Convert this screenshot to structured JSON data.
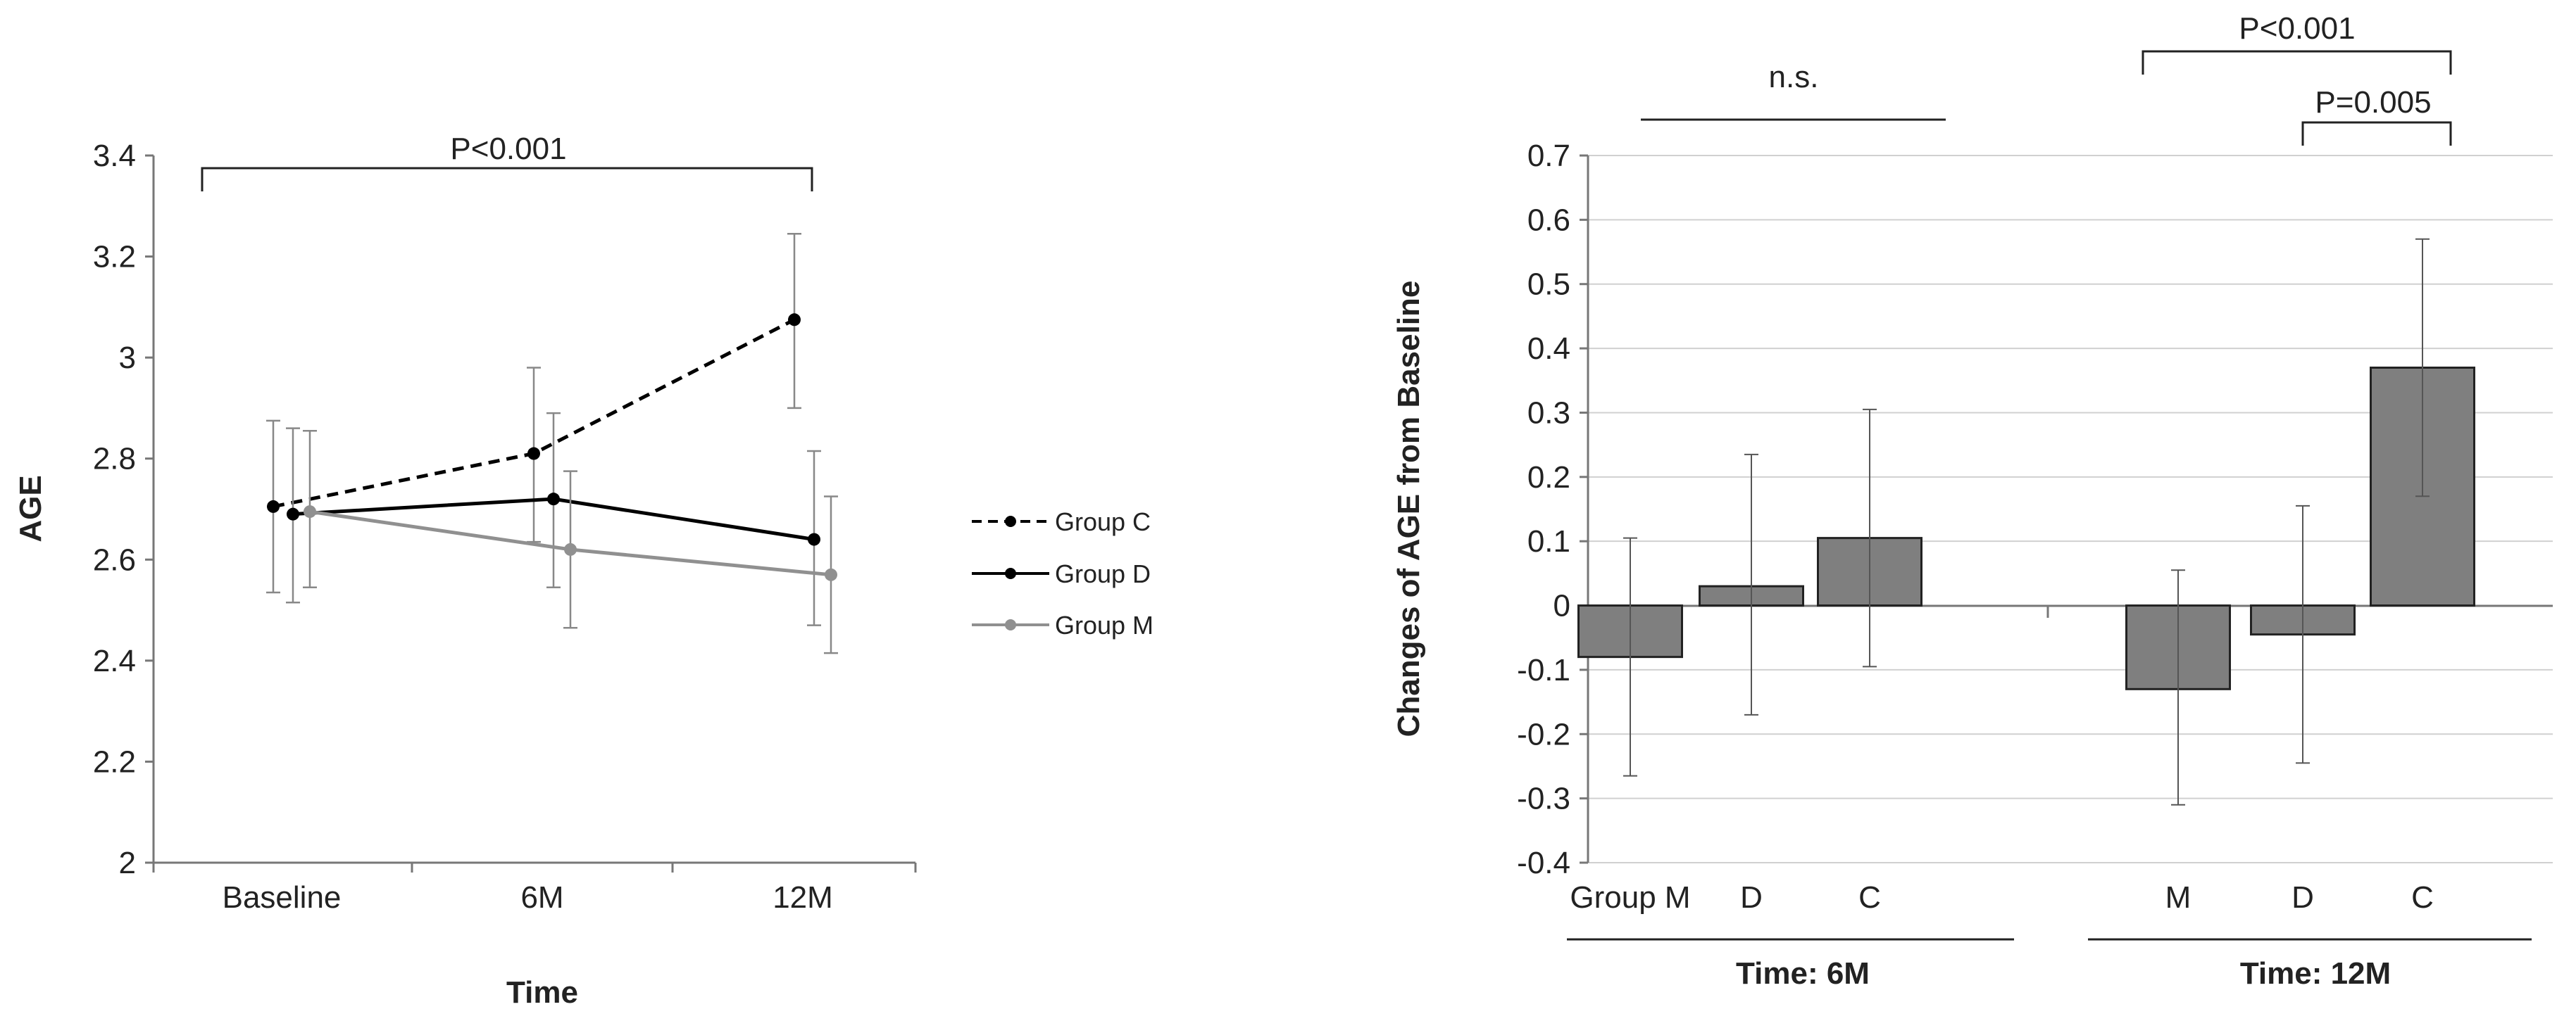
{
  "chart_data": [
    {
      "type": "line",
      "xlabel": "Time",
      "ylabel": "AGE",
      "categories": [
        "Baseline",
        "6M",
        "12M"
      ],
      "ylim": [
        2,
        3.4
      ],
      "yticks": [
        "2",
        "2.2",
        "2.4",
        "2.6",
        "2.8",
        "3",
        "3.2",
        "3.4"
      ],
      "series": [
        {
          "name": "Group C",
          "style": "dashed",
          "color": "#000000",
          "values": [
            2.705,
            2.81,
            3.075
          ],
          "err_low": [
            2.535,
            2.635,
            2.9
          ],
          "err_high": [
            2.875,
            2.98,
            3.245
          ]
        },
        {
          "name": "Group D",
          "style": "solid",
          "color": "#000000",
          "values": [
            2.69,
            2.72,
            2.64
          ],
          "err_low": [
            2.515,
            2.545,
            2.47
          ],
          "err_high": [
            2.86,
            2.89,
            2.815
          ]
        },
        {
          "name": "Group M",
          "style": "solid",
          "color": "#909090",
          "values": [
            2.695,
            2.62,
            2.57
          ],
          "err_low": [
            2.545,
            2.465,
            2.415
          ],
          "err_high": [
            2.855,
            2.775,
            2.725
          ]
        }
      ],
      "legend": [
        "Group C",
        "Group D",
        "Group M"
      ],
      "annotations": [
        {
          "text": "P<0.001",
          "from": "Baseline",
          "to": "12M"
        }
      ]
    },
    {
      "type": "bar",
      "ylabel": "Changes of AGE from Baseline",
      "ylim": [
        -0.4,
        0.7
      ],
      "yticks": [
        "-0.4",
        "-0.3",
        "-0.2",
        "-0.1",
        "0",
        "0.1",
        "0.2",
        "0.3",
        "0.4",
        "0.5",
        "0.6",
        "0.7"
      ],
      "groups": [
        {
          "label": "Time: 6M",
          "categories": [
            "Group M",
            "D",
            "C"
          ],
          "values": [
            -0.08,
            0.03,
            0.105
          ],
          "err_low": [
            -0.265,
            -0.17,
            -0.095
          ],
          "err_high": [
            0.105,
            0.235,
            0.305
          ]
        },
        {
          "label": "Time: 12M",
          "categories": [
            "M",
            "D",
            "C"
          ],
          "values": [
            -0.13,
            -0.045,
            0.37
          ],
          "err_low": [
            -0.31,
            -0.245,
            0.17
          ],
          "err_high": [
            0.055,
            0.155,
            0.57
          ]
        }
      ],
      "bar_color": "#7f7f7f",
      "annotations": [
        {
          "text": "n.s."
        },
        {
          "text": "P<0.001"
        },
        {
          "text": "P=0.005"
        }
      ]
    }
  ]
}
